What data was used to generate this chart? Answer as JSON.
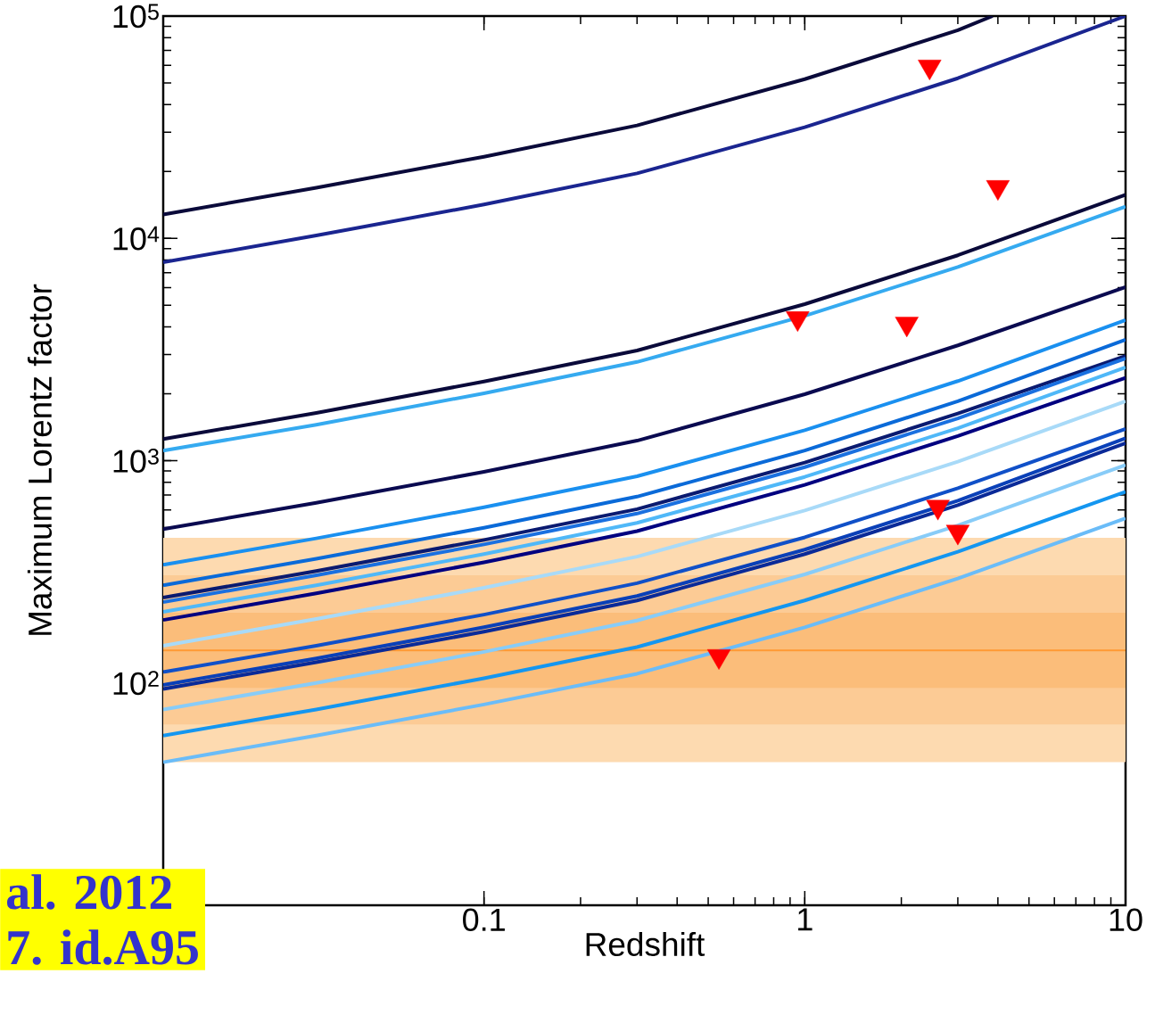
{
  "chart_data": {
    "type": "line",
    "xlabel": "Redshift",
    "ylabel": "Maximum Lorentz factor",
    "log": "xy",
    "xlim": [
      0.01,
      10
    ],
    "ylim": [
      10,
      100000
    ],
    "xticks": [
      0.1,
      1,
      10
    ],
    "yticks": [
      {
        "value": 100,
        "label": "10$^{2}$"
      },
      {
        "value": 1000,
        "label": "10$^{3}$"
      },
      {
        "value": 10000,
        "label": "10$^{4}$"
      },
      {
        "value": 100000,
        "label": "10$^{5}$"
      }
    ],
    "x": [
      0.01,
      0.03,
      0.1,
      0.3,
      1,
      3,
      10
    ],
    "marker": "none",
    "line_style": "solid",
    "bands": [
      {
        "axis": "y",
        "from": 44,
        "to": 450,
        "color": "#fddab0"
      },
      {
        "axis": "y",
        "from": 65,
        "to": 305,
        "color": "#fccb95"
      },
      {
        "axis": "y",
        "from": 95,
        "to": 207,
        "color": "#fbbd7a"
      }
    ],
    "ref_lines": [
      {
        "axis": "y",
        "value": 140,
        "color": "#ff9933"
      }
    ],
    "series": [
      {
        "color": "#0a0a3a",
        "x": [
          0.01,
          0.03,
          0.1,
          0.3,
          1,
          3,
          3.85
        ],
        "values": [
          12800,
          16900,
          23300,
          32200,
          52000,
          86300,
          100000
        ]
      },
      {
        "color": "#1a2590",
        "values": [
          7800,
          10300,
          14200,
          19600,
          31600,
          52500,
          100000
        ]
      },
      {
        "color": "#0a0a3a",
        "values": [
          1250,
          1640,
          2270,
          3130,
          5060,
          8390,
          15700
        ]
      },
      {
        "color": "#35aaf0",
        "values": [
          1110,
          1450,
          2010,
          2780,
          4480,
          7430,
          13900
        ]
      },
      {
        "color": "#0a0a50",
        "values": [
          492,
          646,
          891,
          1230,
          1990,
          3300,
          6030
        ]
      },
      {
        "color": "#1a90f0",
        "values": [
          340,
          447,
          617,
          851,
          1370,
          2280,
          4290
        ]
      },
      {
        "color": "#0a6ad8",
        "values": [
          275,
          362,
          499,
          689,
          1110,
          1850,
          3500
        ]
      },
      {
        "color": "#0a1a70",
        "values": [
          242,
          319,
          440,
          605,
          980,
          1630,
          2960
        ]
      },
      {
        "color": "#1a70e0",
        "values": [
          231,
          305,
          420,
          578,
          935,
          1550,
          2880
        ]
      },
      {
        "color": "#50b8f8",
        "values": [
          209,
          275,
          380,
          525,
          845,
          1400,
          2630
        ]
      },
      {
        "color": "#000080",
        "values": [
          192,
          253,
          349,
          482,
          778,
          1290,
          2360
        ]
      },
      {
        "color": "#a8daf8",
        "values": [
          147,
          194,
          268,
          370,
          597,
          990,
          1850
        ]
      },
      {
        "color": "#1050c8",
        "values": [
          112,
          147,
          203,
          281,
          452,
          752,
          1390
        ]
      },
      {
        "color": "#0a40b8",
        "values": [
          98,
          129,
          178,
          246,
          398,
          661,
          1260
        ]
      },
      {
        "color": "#0a2a98",
        "values": [
          94,
          124,
          170,
          235,
          380,
          631,
          1200
        ]
      },
      {
        "color": "#88ccf8",
        "values": [
          76,
          100,
          138,
          191,
          308,
          511,
          955
        ]
      },
      {
        "color": "#1496f0",
        "values": [
          58,
          76,
          105,
          145,
          235,
          389,
          724
        ]
      },
      {
        "color": "#6abcf8",
        "values": [
          44,
          58,
          80,
          110,
          178,
          295,
          550
        ]
      },
      {
        "type": "scatter",
        "marker": "triangle",
        "color": "#ff0000",
        "x": [
          2.45,
          4.0,
          0.95,
          2.08,
          2.6,
          3.0,
          0.54
        ],
        "values": [
          59200,
          17000,
          4370,
          4130,
          620,
          479,
          132
        ]
      }
    ],
    "annotations": [
      "al. 2012",
      "7. id.A95"
    ]
  }
}
